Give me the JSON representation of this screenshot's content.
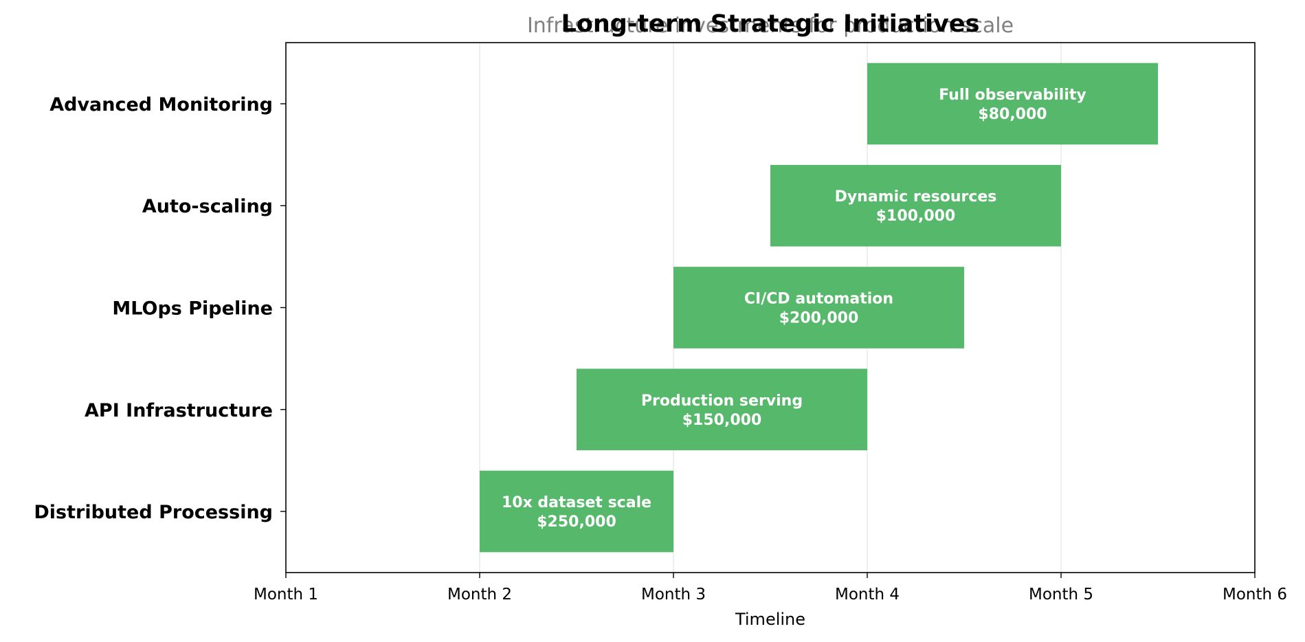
{
  "chart_data": {
    "type": "gantt",
    "title": "Long-term Strategic Initiatives",
    "subtitle": "Infrastructure investments for production scale",
    "xlabel": "Timeline",
    "ylabel": "",
    "xlim": [
      1,
      6
    ],
    "x_ticks": [
      1,
      2,
      3,
      4,
      5,
      6
    ],
    "x_tick_labels": [
      "Month 1",
      "Month 2",
      "Month 3",
      "Month 4",
      "Month 5",
      "Month 6"
    ],
    "grid": "vertical",
    "bar_color": "#55b86a",
    "tasks": [
      {
        "name": "Distributed Processing",
        "start": 2.0,
        "end": 3.0,
        "label": "10x dataset scale",
        "cost": "$250,000"
      },
      {
        "name": "API Infrastructure",
        "start": 2.5,
        "end": 4.0,
        "label": "Production serving",
        "cost": "$150,000"
      },
      {
        "name": "MLOps Pipeline",
        "start": 3.0,
        "end": 4.5,
        "label": "CI/CD automation",
        "cost": "$200,000"
      },
      {
        "name": "Auto-scaling",
        "start": 3.5,
        "end": 5.0,
        "label": "Dynamic resources",
        "cost": "$100,000"
      },
      {
        "name": "Advanced Monitoring",
        "start": 4.0,
        "end": 5.5,
        "label": "Full observability",
        "cost": "$80,000"
      }
    ]
  }
}
